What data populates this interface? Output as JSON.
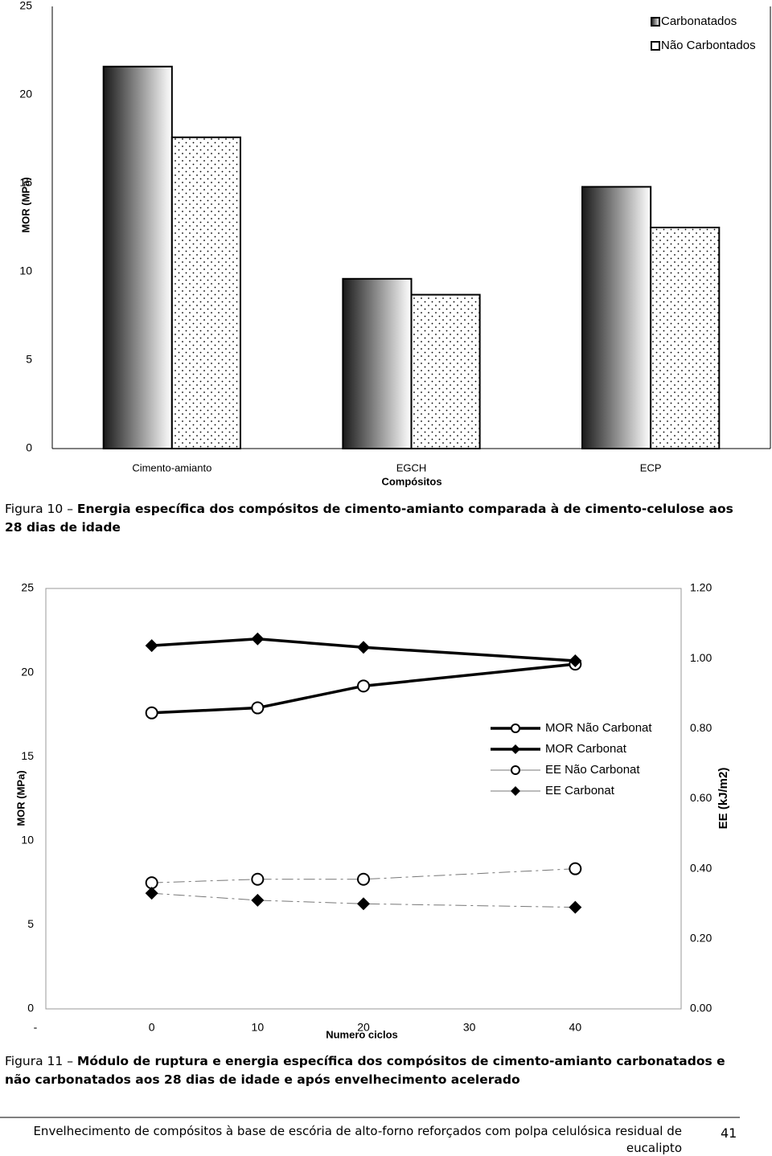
{
  "chart_data": [
    {
      "type": "bar",
      "y_label": "MOR (MPa)",
      "x_label": "Compósitos",
      "categories": [
        "Cimento-amianto",
        "EGCH",
        "ECP"
      ],
      "series": [
        {
          "name": "Carbonatados",
          "color": "#1a1a1a",
          "fill": "gradient",
          "values": [
            21.6,
            9.6,
            14.8
          ]
        },
        {
          "name": "Não Carbontados",
          "color": "#ffffff",
          "fill": "dots",
          "values": [
            17.6,
            8.7,
            12.5
          ]
        }
      ],
      "ylim": [
        0,
        25
      ],
      "yticks": [
        0,
        5,
        10,
        15,
        20,
        25
      ],
      "grid": false,
      "legend": "top-right"
    },
    {
      "type": "line",
      "y_label": "MOR (MPa)",
      "y2_label": "EE (kJ/m2)",
      "x_label": "Numero ciclos",
      "x": [
        0,
        10,
        20,
        40
      ],
      "xlim": [
        -10,
        50
      ],
      "xticks": [
        {
          "value": -10,
          "label": "-"
        },
        0,
        10,
        20,
        30,
        40
      ],
      "ylim": [
        0,
        25
      ],
      "yticks": [
        0,
        5,
        10,
        15,
        20,
        25
      ],
      "y2lim": [
        0,
        1.2
      ],
      "y2ticks": [
        {
          "value": 0,
          "label": "0.00"
        },
        {
          "value": 0.2,
          "label": "0.20"
        },
        {
          "value": 0.4,
          "label": "0.40"
        },
        {
          "value": 0.6,
          "label": "0.60"
        },
        {
          "value": 0.8,
          "label": "0.80"
        },
        {
          "value": 1,
          "label": "1.00"
        },
        {
          "value": 1.2,
          "label": "1.20"
        }
      ],
      "series": [
        {
          "name": "MOR Não Carbonat",
          "color": "#000000",
          "marker": "circle",
          "line_style": "solid",
          "values": [
            17.6,
            17.9,
            19.2,
            20.5
          ]
        },
        {
          "name": "MOR Carbonat",
          "color": "#000000",
          "marker": "diamond",
          "line_style": "solid",
          "values": [
            21.6,
            22.0,
            21.5,
            20.7
          ]
        },
        {
          "name": "EE Não Carbonat",
          "color": "#000000",
          "marker": "circle",
          "line_style": "dashed",
          "axis": "y2",
          "values": [
            0.36,
            0.37,
            0.37,
            0.4
          ]
        },
        {
          "name": "EE Carbonat",
          "color": "#000000",
          "marker": "diamond",
          "line_style": "dashed",
          "axis": "y2",
          "values": [
            0.33,
            0.31,
            0.3,
            0.29
          ]
        }
      ],
      "grid": false,
      "legend": "center-right"
    }
  ],
  "captions": [
    {
      "label": "Figura 10 –",
      "text": "Energia específica dos compósitos de cimento-amianto comparada à de cimento-celulose aos 28 dias de idade"
    },
    {
      "label": "Figura 11 –",
      "text": "Módulo de ruptura e energia específica dos compósitos de cimento-amianto carbonatados e não carbonatados aos 28 dias de idade e após envelhecimento acelerado"
    }
  ],
  "footer": {
    "text": "Envelhecimento de compósitos à base de escória de alto-forno reforçados com polpa celulósica residual de eucalipto",
    "page": "41"
  }
}
